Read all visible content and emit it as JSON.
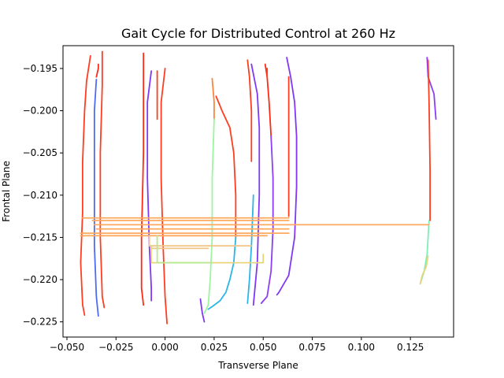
{
  "chart_data": {
    "type": "line",
    "title": "Gait Cycle for Distributed Control at 260 Hz",
    "xlabel": "Transverse Plane",
    "ylabel": "Frontal Plane",
    "xlim": [
      -0.052,
      0.147
    ],
    "ylim": [
      -0.2268,
      -0.1923
    ],
    "grid": false,
    "legend": "none",
    "colormap": "rainbow",
    "xticks": [
      {
        "value": -0.05,
        "label": "−0.050"
      },
      {
        "value": -0.025,
        "label": "−0.025"
      },
      {
        "value": 0.0,
        "label": "0.000"
      },
      {
        "value": 0.025,
        "label": "0.025"
      },
      {
        "value": 0.05,
        "label": "0.050"
      },
      {
        "value": 0.075,
        "label": "0.075"
      },
      {
        "value": 0.1,
        "label": "0.100"
      },
      {
        "value": 0.125,
        "label": "0.125"
      }
    ],
    "yticks": [
      {
        "value": -0.195,
        "label": "−0.195"
      },
      {
        "value": -0.2,
        "label": "−0.200"
      },
      {
        "value": -0.205,
        "label": "−0.205"
      },
      {
        "value": -0.21,
        "label": "−0.210"
      },
      {
        "value": -0.215,
        "label": "−0.215"
      },
      {
        "value": -0.22,
        "label": "−0.220"
      },
      {
        "value": -0.225,
        "label": "−0.225"
      }
    ],
    "series": [
      {
        "color": "#ff3d1f",
        "x": [
          -0.038,
          -0.04,
          -0.041,
          -0.042,
          -0.042,
          -0.043,
          -0.042,
          -0.041
        ],
        "y": [
          -0.1935,
          -0.1965,
          -0.2,
          -0.206,
          -0.212,
          -0.218,
          -0.223,
          -0.2242
        ]
      },
      {
        "color": "#4f6cf0",
        "x": [
          -0.035,
          -0.036,
          -0.036,
          -0.036,
          -0.035,
          -0.034
        ],
        "y": [
          -0.1963,
          -0.2,
          -0.208,
          -0.216,
          -0.222,
          -0.2243
        ]
      },
      {
        "color": "#ff2a14",
        "x": [
          -0.035,
          -0.034,
          -0.034
        ],
        "y": [
          -0.196,
          -0.195,
          -0.1945
        ]
      },
      {
        "color": "#ff3d1f",
        "x": [
          -0.032,
          -0.032,
          -0.033,
          -0.033,
          -0.032,
          -0.031
        ],
        "y": [
          -0.193,
          -0.197,
          -0.205,
          -0.215,
          -0.222,
          -0.2233
        ]
      },
      {
        "color": "#ff2a14",
        "x": [
          -0.011,
          -0.011,
          -0.011,
          -0.012,
          -0.012,
          -0.011
        ],
        "y": [
          -0.1932,
          -0.197,
          -0.205,
          -0.215,
          -0.221,
          -0.223
        ]
      },
      {
        "color": "#8038f5",
        "x": [
          -0.007,
          -0.009,
          -0.009,
          -0.008,
          -0.007,
          -0.007
        ],
        "y": [
          -0.1953,
          -0.199,
          -0.208,
          -0.216,
          -0.221,
          -0.2225
        ]
      },
      {
        "color": "#ff3d1f",
        "x": [
          -0.004,
          -0.004,
          -0.004
        ],
        "y": [
          -0.1953,
          -0.198,
          -0.201
        ]
      },
      {
        "color": "#ff3d1f",
        "x": [
          0.0,
          -0.002,
          -0.002,
          -0.001,
          0.0,
          0.001
        ],
        "y": [
          -0.195,
          -0.199,
          -0.208,
          -0.216,
          -0.222,
          -0.2252
        ]
      },
      {
        "color": "#f8863f",
        "x": [
          0.024,
          0.025,
          0.025
        ],
        "y": [
          -0.1962,
          -0.199,
          -0.201
        ]
      },
      {
        "color": "#9cf5a0",
        "x": [
          0.025,
          0.024,
          0.024,
          0.023,
          0.022,
          0.02
        ],
        "y": [
          -0.201,
          -0.208,
          -0.215,
          -0.22,
          -0.223,
          -0.224
        ]
      },
      {
        "color": "#ff3d1f",
        "x": [
          0.026,
          0.029,
          0.033,
          0.035,
          0.036,
          0.036
        ],
        "y": [
          -0.1983,
          -0.2,
          -0.202,
          -0.205,
          -0.21,
          -0.215
        ]
      },
      {
        "color": "#2cb5e8",
        "x": [
          0.036,
          0.035,
          0.033,
          0.031,
          0.028,
          0.024,
          0.022
        ],
        "y": [
          -0.215,
          -0.218,
          -0.22,
          -0.2215,
          -0.2225,
          -0.2232,
          -0.2235
        ]
      },
      {
        "color": "#8038f5",
        "x": [
          0.018,
          0.019,
          0.02
        ],
        "y": [
          -0.2223,
          -0.224,
          -0.225
        ]
      },
      {
        "color": "#ff3d1f",
        "x": [
          0.042,
          0.043,
          0.044,
          0.044
        ],
        "y": [
          -0.194,
          -0.196,
          -0.2,
          -0.206
        ]
      },
      {
        "color": "#8038f5",
        "x": [
          0.044,
          0.047,
          0.048,
          0.048,
          0.047,
          0.045
        ],
        "y": [
          -0.1945,
          -0.198,
          -0.202,
          -0.21,
          -0.218,
          -0.223
        ]
      },
      {
        "color": "#2cb5e8",
        "x": [
          0.045,
          0.044,
          0.043,
          0.042
        ],
        "y": [
          -0.21,
          -0.216,
          -0.22,
          -0.2228
        ]
      },
      {
        "color": "#ff2a14",
        "x": [
          0.051,
          0.052,
          0.053,
          0.054
        ],
        "y": [
          -0.1945,
          -0.196,
          -0.199,
          -0.203
        ]
      },
      {
        "color": "#8a3ef5",
        "x": [
          0.054,
          0.055,
          0.055,
          0.054,
          0.052,
          0.049
        ],
        "y": [
          -0.203,
          -0.208,
          -0.214,
          -0.219,
          -0.222,
          -0.2228
        ]
      },
      {
        "color": "#ff3d1f",
        "x": [
          0.052,
          0.052
        ],
        "y": [
          -0.195,
          -0.196
        ]
      },
      {
        "color": "#8038f5",
        "x": [
          0.062,
          0.064,
          0.066,
          0.067,
          0.067,
          0.066,
          0.063,
          0.058,
          0.057
        ],
        "y": [
          -0.1937,
          -0.196,
          -0.199,
          -0.203,
          -0.209,
          -0.215,
          -0.2195,
          -0.2215,
          -0.2218
        ]
      },
      {
        "color": "#ff3d1f",
        "x": [
          0.063,
          0.063,
          0.063
        ],
        "y": [
          -0.196,
          -0.205,
          -0.2125
        ]
      },
      {
        "color": "#8a3ef5",
        "x": [
          0.1335,
          0.134,
          0.137,
          0.138
        ],
        "y": [
          -0.1937,
          -0.196,
          -0.198,
          -0.201
        ]
      },
      {
        "color": "#ff3d1f",
        "x": [
          0.134,
          0.1345,
          0.135,
          0.135
        ],
        "y": [
          -0.194,
          -0.199,
          -0.207,
          -0.213
        ]
      },
      {
        "color": "#7cf0b4",
        "x": [
          0.1345,
          0.1335,
          0.132,
          0.13
        ],
        "y": [
          -0.213,
          -0.217,
          -0.219,
          -0.2205
        ]
      },
      {
        "color": "#e8d47a",
        "x": [
          0.13,
          0.131,
          0.133,
          0.134
        ],
        "y": [
          -0.2205,
          -0.2195,
          -0.2185,
          -0.2172
        ]
      },
      {
        "color": "#ffa95e",
        "x": [
          -0.042,
          0.063
        ],
        "y": [
          -0.2127,
          -0.2127
        ]
      },
      {
        "color": "#ffa95e",
        "x": [
          -0.037,
          0.063
        ],
        "y": [
          -0.213,
          -0.213
        ]
      },
      {
        "color": "#ffa95e",
        "x": [
          -0.036,
          0.1345
        ],
        "y": [
          -0.2135,
          -0.2135
        ]
      },
      {
        "color": "#ffa95e",
        "x": [
          -0.035,
          0.063
        ],
        "y": [
          -0.214,
          -0.214
        ]
      },
      {
        "color": "#ffa95e",
        "x": [
          -0.043,
          0.063
        ],
        "y": [
          -0.2145,
          -0.2145
        ]
      },
      {
        "color": "#ffa95e",
        "x": [
          -0.043,
          0.052
        ],
        "y": [
          -0.2148,
          -0.2148
        ]
      },
      {
        "color": "#f0c58a",
        "x": [
          -0.008,
          -0.008,
          0.044
        ],
        "y": [
          -0.2148,
          -0.216,
          -0.216
        ]
      },
      {
        "color": "#f0c58a",
        "x": [
          -0.007,
          0.022
        ],
        "y": [
          -0.2163,
          -0.2163
        ]
      },
      {
        "color": "#e8d47a",
        "x": [
          -0.007,
          -0.007,
          0.05,
          0.05
        ],
        "y": [
          -0.216,
          -0.218,
          -0.218,
          -0.217
        ]
      },
      {
        "color": "#b6e890",
        "x": [
          -0.004,
          -0.004,
          0.024
        ],
        "y": [
          -0.2148,
          -0.218,
          -0.218
        ]
      }
    ]
  }
}
